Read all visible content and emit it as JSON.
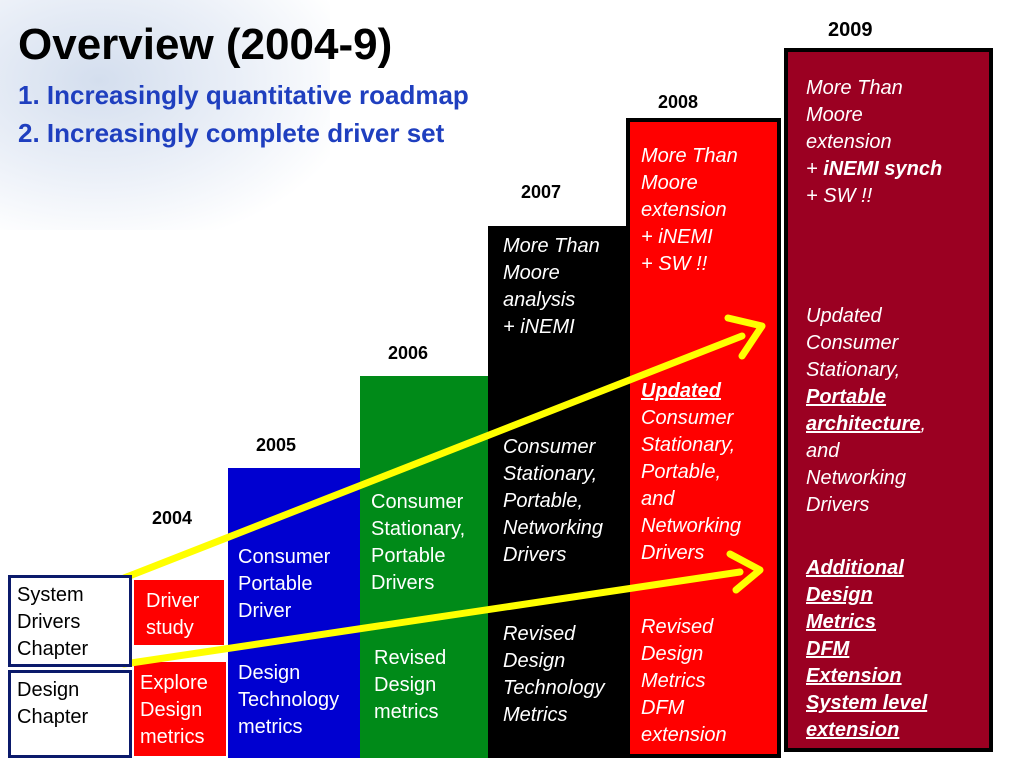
{
  "title": "Overview (2004-9)",
  "subtitle_1": "1. Increasingly quantitative roadmap",
  "subtitle_2": "2. Increasingly complete driver set",
  "years": {
    "y2004": "2004",
    "y2005": "2005",
    "y2006": "2006",
    "y2007": "2007",
    "y2008": "2008",
    "y2009": "2009"
  },
  "chapters": {
    "system_drivers": [
      "System",
      "Drivers",
      "Chapter"
    ],
    "design": [
      "Design",
      "Chapter"
    ]
  },
  "col2004": {
    "top": [
      "Driver",
      "study"
    ],
    "bottom": [
      "Explore",
      "Design",
      "metrics"
    ]
  },
  "col2005": {
    "top": [
      "Consumer",
      "Portable",
      "Driver"
    ],
    "bottom": [
      "Design",
      "Technology",
      "metrics"
    ]
  },
  "col2006": {
    "top": [
      "Consumer",
      "Stationary,",
      "Portable",
      "Drivers"
    ],
    "bottom": [
      "Revised",
      "Design",
      "metrics"
    ]
  },
  "col2007": {
    "note": [
      "More Than",
      "Moore",
      "analysis",
      "+ iNEMI"
    ],
    "top": [
      "Consumer",
      "Stationary,",
      "Portable,",
      "Networking",
      "Drivers"
    ],
    "bottom": [
      "Revised",
      "Design",
      "Technology",
      "Metrics"
    ]
  },
  "col2008": {
    "note": [
      "More Than",
      "Moore",
      "extension",
      "+ iNEMI",
      "+ SW !!"
    ],
    "top_first": "Updated ",
    "top": [
      "Consumer",
      "Stationary,",
      "Portable,",
      "and",
      "Networking",
      "Drivers"
    ],
    "bottom": [
      "Revised",
      "Design",
      "Metrics",
      "DFM",
      "extension"
    ]
  },
  "col2009": {
    "note": [
      "More Than",
      "Moore",
      "extension"
    ],
    "note_plus": "+ ",
    "note_bold": "iNEMI synch",
    "note_last": "+ SW !!",
    "top": {
      "l1": "Updated",
      "l2": "Consumer",
      "l3": "Stationary,",
      "l4": "Portable",
      "l5": "architecture",
      "l5_suffix": ",",
      "l6": "and",
      "l7": "Networking",
      "l8": "Drivers"
    },
    "bottom": [
      "Additional",
      "Design",
      "Metrics",
      "DFM",
      "Extension",
      "System level",
      "extension"
    ]
  },
  "colors": {
    "blue": "#0000d0",
    "green": "#008a18",
    "black": "#000000",
    "red": "#ff0000",
    "maroon": "#9b0022",
    "arrow": "#ffff00"
  }
}
